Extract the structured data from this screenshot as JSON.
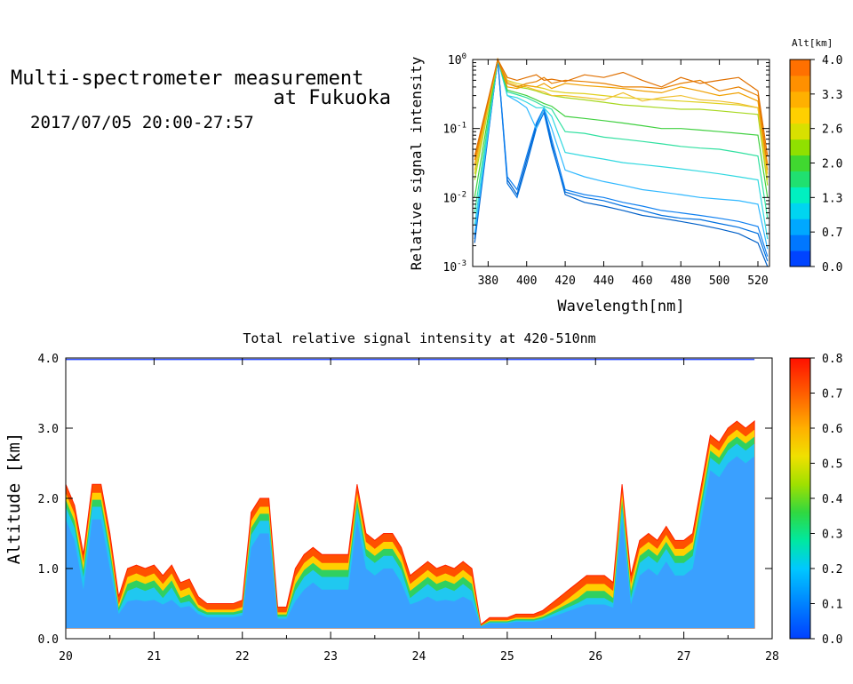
{
  "header": {
    "title_line1": "Multi-spectrometer measurement",
    "title_line2": "at Fukuoka",
    "timestamp": "2017/07/05 20:00-27:57"
  },
  "chart_data": [
    {
      "type": "line",
      "title": "",
      "xlabel": "Wavelength[nm]",
      "ylabel": "Relative signal intensity",
      "xlim": [
        372,
        526
      ],
      "ylim": [
        0.001,
        1
      ],
      "yscale": "log",
      "grid": false,
      "x_ticks": [
        "380",
        "400",
        "420",
        "440",
        "460",
        "480",
        "500",
        "520"
      ],
      "y_ticks": [
        {
          "base": "10",
          "exp": "0"
        },
        {
          "base": "10",
          "exp": "-1"
        },
        {
          "base": "10",
          "exp": "-2"
        },
        {
          "base": "10",
          "exp": "-3"
        }
      ],
      "x": [
        373,
        385,
        390,
        395,
        400,
        405,
        409,
        413,
        420,
        430,
        440,
        450,
        460,
        470,
        480,
        490,
        500,
        510,
        520,
        525
      ],
      "colorbar": {
        "title": "Alt[km]",
        "ticks": [
          "4.0",
          "3.3",
          "2.6",
          "2.0",
          "1.3",
          "0.7",
          "0.0"
        ],
        "colors": [
          "#0044ff",
          "#0077ff",
          "#00a8ff",
          "#00d5f0",
          "#00f0c0",
          "#20e070",
          "#40d830",
          "#90e000",
          "#d8e000",
          "#ffd000",
          "#ffb000",
          "#ff9000",
          "#ff7000"
        ]
      },
      "series": [
        {
          "color": "#0060c8",
          "values": [
            0.0022,
            1.0,
            0.018,
            0.011,
            0.035,
            0.11,
            0.19,
            0.06,
            0.011,
            0.0085,
            0.0075,
            0.0065,
            0.0055,
            0.005,
            0.0045,
            0.004,
            0.0035,
            0.003,
            0.0022,
            0.001
          ]
        },
        {
          "color": "#0070e0",
          "values": [
            0.0025,
            1.0,
            0.016,
            0.01,
            0.03,
            0.1,
            0.17,
            0.055,
            0.012,
            0.01,
            0.009,
            0.0075,
            0.0065,
            0.0055,
            0.005,
            0.0048,
            0.0042,
            0.0037,
            0.003,
            0.0012
          ]
        },
        {
          "color": "#1080f0",
          "values": [
            0.0028,
            1.0,
            0.02,
            0.013,
            0.04,
            0.12,
            0.2,
            0.07,
            0.013,
            0.011,
            0.01,
            0.0085,
            0.0075,
            0.0065,
            0.006,
            0.0055,
            0.005,
            0.0045,
            0.0038,
            0.0014
          ]
        },
        {
          "color": "#30b8ff",
          "values": [
            0.003,
            1.0,
            0.3,
            0.25,
            0.2,
            0.1,
            0.2,
            0.1,
            0.025,
            0.02,
            0.017,
            0.015,
            0.013,
            0.012,
            0.011,
            0.01,
            0.0095,
            0.009,
            0.008,
            0.0018
          ]
        },
        {
          "color": "#30d8e0",
          "values": [
            0.004,
            1.0,
            0.3,
            0.28,
            0.24,
            0.2,
            0.2,
            0.15,
            0.045,
            0.04,
            0.036,
            0.032,
            0.03,
            0.028,
            0.026,
            0.024,
            0.022,
            0.02,
            0.018,
            0.0025
          ]
        },
        {
          "color": "#30e0a0",
          "values": [
            0.006,
            1.0,
            0.34,
            0.31,
            0.28,
            0.24,
            0.21,
            0.19,
            0.09,
            0.085,
            0.075,
            0.07,
            0.065,
            0.06,
            0.055,
            0.052,
            0.05,
            0.045,
            0.04,
            0.005
          ]
        },
        {
          "color": "#40d040",
          "values": [
            0.01,
            1.0,
            0.36,
            0.33,
            0.3,
            0.26,
            0.23,
            0.21,
            0.15,
            0.14,
            0.13,
            0.12,
            0.11,
            0.1,
            0.1,
            0.095,
            0.09,
            0.085,
            0.08,
            0.01
          ]
        },
        {
          "color": "#a8d820",
          "values": [
            0.018,
            1.0,
            0.45,
            0.4,
            0.38,
            0.35,
            0.32,
            0.3,
            0.28,
            0.26,
            0.24,
            0.22,
            0.21,
            0.2,
            0.19,
            0.19,
            0.18,
            0.17,
            0.16,
            0.015
          ]
        },
        {
          "color": "#e0d020",
          "values": [
            0.022,
            1.0,
            0.5,
            0.45,
            0.42,
            0.4,
            0.38,
            0.35,
            0.33,
            0.32,
            0.3,
            0.28,
            0.27,
            0.26,
            0.25,
            0.24,
            0.23,
            0.22,
            0.2,
            0.018
          ]
        },
        {
          "color": "#f0c030",
          "values": [
            0.025,
            1.0,
            0.48,
            0.42,
            0.4,
            0.36,
            0.34,
            0.3,
            0.3,
            0.28,
            0.26,
            0.33,
            0.25,
            0.28,
            0.3,
            0.26,
            0.25,
            0.23,
            0.2,
            0.022
          ]
        },
        {
          "color": "#f0a000",
          "values": [
            0.03,
            1.0,
            0.4,
            0.38,
            0.42,
            0.4,
            0.45,
            0.38,
            0.45,
            0.42,
            0.4,
            0.38,
            0.35,
            0.33,
            0.4,
            0.35,
            0.3,
            0.33,
            0.25,
            0.025
          ]
        },
        {
          "color": "#e88000",
          "values": [
            0.035,
            1.0,
            0.45,
            0.4,
            0.45,
            0.48,
            0.55,
            0.45,
            0.5,
            0.48,
            0.45,
            0.4,
            0.4,
            0.38,
            0.45,
            0.5,
            0.35,
            0.4,
            0.3,
            0.03
          ]
        },
        {
          "color": "#e07000",
          "values": [
            0.04,
            1.0,
            0.55,
            0.5,
            0.55,
            0.6,
            0.5,
            0.52,
            0.48,
            0.6,
            0.55,
            0.65,
            0.5,
            0.4,
            0.55,
            0.45,
            0.5,
            0.55,
            0.35,
            0.04
          ]
        }
      ]
    },
    {
      "type": "heatmap",
      "title": "Total relative signal intensity at 420-510nm",
      "xlabel": "",
      "ylabel": "Altitude [km]",
      "xlim": [
        20,
        28
      ],
      "ylim": [
        0,
        4
      ],
      "grid": false,
      "x_ticks": [
        "20",
        "21",
        "22",
        "23",
        "24",
        "25",
        "26",
        "27",
        "28"
      ],
      "y_ticks": [
        "0.0",
        "1.0",
        "2.0",
        "3.0",
        "4.0"
      ],
      "colorbar": {
        "ticks": [
          "0.0",
          "0.1",
          "0.2",
          "0.3",
          "0.4",
          "0.5",
          "0.6",
          "0.7",
          "0.8"
        ],
        "range": [
          0,
          0.8
        ]
      },
      "x": [
        20.0,
        20.1,
        20.2,
        20.3,
        20.4,
        20.5,
        20.6,
        20.7,
        20.8,
        20.9,
        21.0,
        21.1,
        21.2,
        21.3,
        21.4,
        21.5,
        21.6,
        21.7,
        21.8,
        21.9,
        22.0,
        22.1,
        22.2,
        22.3,
        22.4,
        22.5,
        22.6,
        22.7,
        22.8,
        22.9,
        23.0,
        23.1,
        23.2,
        23.3,
        23.4,
        23.5,
        23.6,
        23.7,
        23.8,
        23.9,
        24.0,
        24.1,
        24.2,
        24.3,
        24.4,
        24.5,
        24.6,
        24.7,
        24.8,
        24.9,
        25.0,
        25.1,
        25.2,
        25.3,
        25.4,
        25.5,
        25.6,
        25.7,
        25.8,
        25.9,
        26.0,
        26.1,
        26.2,
        26.3,
        26.4,
        26.5,
        26.6,
        26.7,
        26.8,
        26.9,
        27.0,
        27.1,
        27.2,
        27.3,
        27.4,
        27.5,
        27.6,
        27.7,
        27.8
      ],
      "layer_top_km": [
        2.2,
        1.9,
        1.2,
        2.2,
        2.2,
        1.5,
        0.6,
        1.0,
        1.05,
        1.0,
        1.05,
        0.9,
        1.05,
        0.8,
        0.85,
        0.6,
        0.5,
        0.5,
        0.5,
        0.5,
        0.55,
        1.8,
        2.0,
        2.0,
        0.45,
        0.45,
        1.0,
        1.2,
        1.3,
        1.2,
        1.2,
        1.2,
        1.2,
        2.2,
        1.5,
        1.4,
        1.5,
        1.5,
        1.3,
        0.9,
        1.0,
        1.1,
        1.0,
        1.05,
        1.0,
        1.1,
        1.0,
        0.2,
        0.3,
        0.3,
        0.3,
        0.35,
        0.35,
        0.35,
        0.4,
        0.5,
        0.6,
        0.7,
        0.8,
        0.9,
        0.9,
        0.9,
        0.8,
        2.2,
        0.9,
        1.4,
        1.5,
        1.4,
        1.6,
        1.4,
        1.4,
        1.5,
        2.2,
        2.9,
        2.8,
        3.0,
        3.1,
        3.0,
        3.1
      ],
      "bottom_km": 0.15,
      "edge_color": "#ff5000",
      "core_color": "#3aa0ff"
    }
  ]
}
